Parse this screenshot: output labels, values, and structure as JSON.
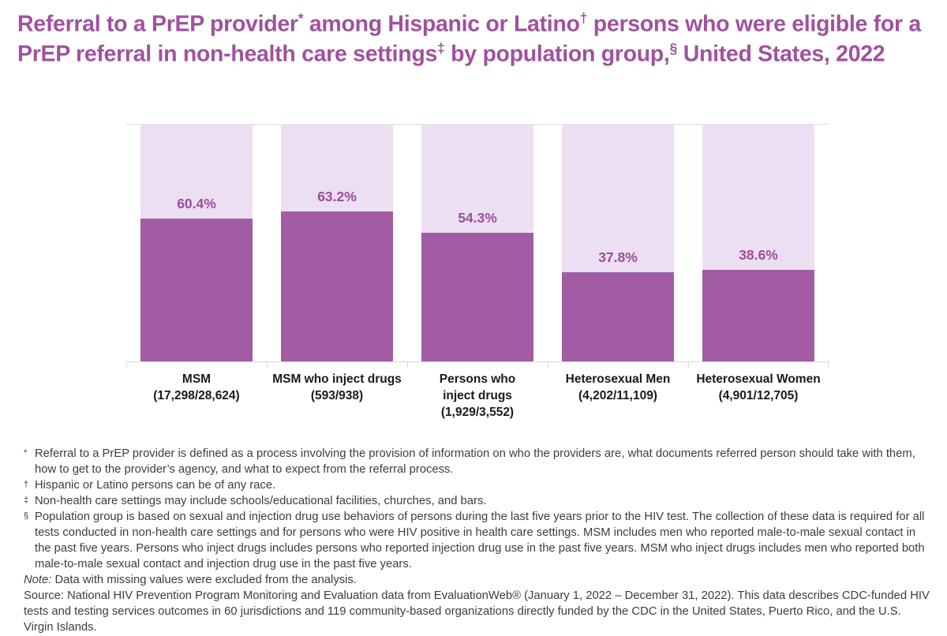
{
  "title_segments": [
    {
      "t": "Referral to a PrEP provider",
      "sup": false
    },
    {
      "t": "*",
      "sup": true
    },
    {
      "t": " among Hispanic or Latino",
      "sup": false
    },
    {
      "t": "†",
      "sup": true
    },
    {
      "t": " persons who were eligible for a PrEP referral in non-health care settings",
      "sup": false
    },
    {
      "t": "‡",
      "sup": true
    },
    {
      "t": " by population group,",
      "sup": false
    },
    {
      "t": "§",
      "sup": true
    },
    {
      "t": " United States, 2022",
      "sup": false
    }
  ],
  "chart_data": {
    "type": "bar",
    "subtype": "stacked-100-percent",
    "title": "Referral to a PrEP provider* among Hispanic or Latino† persons who were eligible for a PrEP referral in non-health care settings‡ by population group,§ United States, 2022",
    "categories": [
      "MSM",
      "MSM who inject drugs",
      "Persons who inject drugs",
      "Heterosexual Men",
      "Heterosexual Women"
    ],
    "category_sublabels": [
      "(17,298/28,624)",
      "(593/938)",
      "(1,929/3,552)",
      "(4,202/11,109)",
      "(4,901/12,705)"
    ],
    "category_label_lines": [
      [
        "MSM",
        "(17,298/28,624)"
      ],
      [
        "MSM who inject drugs",
        "(593/938)"
      ],
      [
        "Persons who",
        "inject drugs",
        "(1,929/3,552)"
      ],
      [
        "Heterosexual Men",
        "(4,202/11,109)"
      ],
      [
        "Heterosexual Women",
        "(4,901/12,705)"
      ]
    ],
    "values": [
      60.4,
      63.2,
      54.3,
      37.8,
      38.6
    ],
    "value_labels": [
      "60.4%",
      "63.2%",
      "54.3%",
      "37.8%",
      "38.6%"
    ],
    "ylim": [
      0,
      100
    ],
    "xlabel": "",
    "ylabel": "",
    "grid": "top-gridline-only",
    "legend": "none",
    "bar_color": "#a15ca4",
    "remainder_color": "#ecdff1"
  },
  "theme": {
    "title_color": "#a0519f",
    "value_label_color": "#9c4c9e",
    "category_label_color": "#1a1a1a",
    "footnote_color": "#3d3d3d",
    "axis_color": "#d9d9d9",
    "gridline_color": "#dcdcdc",
    "background_color": "#ffffff"
  },
  "footnotes": [
    {
      "marker": "*",
      "text": "Referral to a PrEP provider is defined as a process involving the provision of information on who the providers are, what documents referred person should take with them, how to get to the provider’s agency, and what to expect from the referral process."
    },
    {
      "marker": "†",
      "text": "Hispanic or Latino persons can be of any race."
    },
    {
      "marker": "‡",
      "text": "Non-health care settings may include schools/educational facilities, churches, and bars."
    },
    {
      "marker": "§",
      "text": "Population group is based on sexual and injection drug use behaviors of persons during the last five years prior to the HIV test. The collection of these data is required for all tests conducted in non-health care settings and for persons who were HIV positive in health care settings. MSM includes men who reported male-to-male sexual contact in the past five years. Persons who inject drugs includes persons who reported injection drug use in the past five years. MSM who inject drugs includes men who reported both male-to-male sexual contact and injection drug use in the past five years."
    }
  ],
  "note": {
    "prefix": "Note:",
    "text": " Data with missing values were excluded from the analysis."
  },
  "source": "Source: National HIV Prevention Program Monitoring and Evaluation data from EvaluationWeb® (January 1, 2022 – December 31, 2022). This data describes CDC-funded HIV tests and testing services outcomes in 60 jurisdictions and 119 community-based organizations directly funded by the CDC in the United States, Puerto Rico, and the U.S. Virgin Islands."
}
